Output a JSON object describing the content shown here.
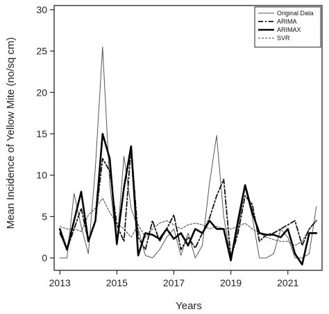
{
  "chart_data": {
    "type": "line",
    "xlabel": "Years",
    "ylabel": "Mean Incidence of Yellow Mite (no/sq cm)",
    "xlim": [
      2012.8,
      2022.2
    ],
    "ylim": [
      -1.5,
      30.5
    ],
    "x_ticks": [
      2013,
      2015,
      2017,
      2019,
      2021
    ],
    "y_ticks": [
      0,
      5,
      10,
      15,
      20,
      25,
      30
    ],
    "x_tick_labels": [
      "2013",
      "2015",
      "2017",
      "2019",
      "2021"
    ],
    "y_tick_labels": [
      "0",
      "5",
      "10",
      "15",
      "20",
      "25",
      "30"
    ],
    "grid": false,
    "legend_position": "top-right",
    "x": [
      2013.0,
      2013.25,
      2013.5,
      2013.75,
      2014.0,
      2014.25,
      2014.5,
      2014.75,
      2015.0,
      2015.25,
      2015.5,
      2015.75,
      2016.0,
      2016.25,
      2016.5,
      2016.75,
      2017.0,
      2017.25,
      2017.5,
      2017.75,
      2018.0,
      2018.25,
      2018.5,
      2018.75,
      2019.0,
      2019.25,
      2019.5,
      2019.75,
      2020.0,
      2020.25,
      2020.5,
      2020.75,
      2021.0,
      2021.25,
      2021.5,
      2021.75,
      2022.0
    ],
    "series": [
      {
        "name": "Original Data",
        "values": [
          0.0,
          0.0,
          7.8,
          3.8,
          0.5,
          11.0,
          25.5,
          9.0,
          1.5,
          12.3,
          6.0,
          3.5,
          0.3,
          0.0,
          1.0,
          2.5,
          3.5,
          0.3,
          3.0,
          0.0,
          1.5,
          9.0,
          14.8,
          5.0,
          0.0,
          3.5,
          8.5,
          5.0,
          0.0,
          0.0,
          0.5,
          3.5,
          2.5,
          0.0,
          0.0,
          0.5,
          6.2
        ],
        "color": "#555555",
        "style": "thin-solid"
      },
      {
        "name": "ARIMA",
        "values": [
          3.0,
          1.0,
          3.5,
          6.0,
          2.0,
          4.5,
          12.0,
          10.5,
          4.0,
          2.0,
          13.5,
          2.5,
          1.0,
          4.5,
          2.0,
          3.5,
          5.2,
          1.0,
          2.5,
          1.2,
          3.0,
          4.8,
          7.5,
          9.5,
          0.0,
          3.0,
          7.5,
          6.5,
          2.0,
          2.8,
          3.0,
          3.5,
          4.0,
          4.5,
          1.5,
          3.5,
          4.5
        ],
        "color": "#111111",
        "style": "dashdot"
      },
      {
        "name": "ARIMAX",
        "values": [
          3.5,
          1.0,
          4.5,
          8.0,
          2.0,
          4.5,
          15.0,
          12.0,
          1.7,
          8.5,
          13.5,
          0.3,
          3.0,
          2.8,
          2.3,
          3.5,
          2.3,
          3.0,
          1.5,
          3.5,
          3.0,
          4.5,
          3.5,
          3.5,
          -0.3,
          4.5,
          8.8,
          5.5,
          3.0,
          2.8,
          2.8,
          2.5,
          3.5,
          0.5,
          -0.8,
          3.0,
          3.0
        ],
        "color": "#000000",
        "style": "thick-solid"
      },
      {
        "name": "SVR",
        "values": [
          3.8,
          3.5,
          3.5,
          3.2,
          5.2,
          6.0,
          7.2,
          5.5,
          4.2,
          3.5,
          2.5,
          4.0,
          2.5,
          3.5,
          4.2,
          4.5,
          4.0,
          3.5,
          4.0,
          4.2,
          4.0,
          3.5,
          3.8,
          3.5,
          3.5,
          3.8,
          4.2,
          3.5,
          3.0,
          2.5,
          2.2,
          2.0,
          2.0,
          1.5,
          2.0,
          3.5,
          4.5
        ],
        "color": "#444444",
        "style": "dashed"
      }
    ]
  }
}
